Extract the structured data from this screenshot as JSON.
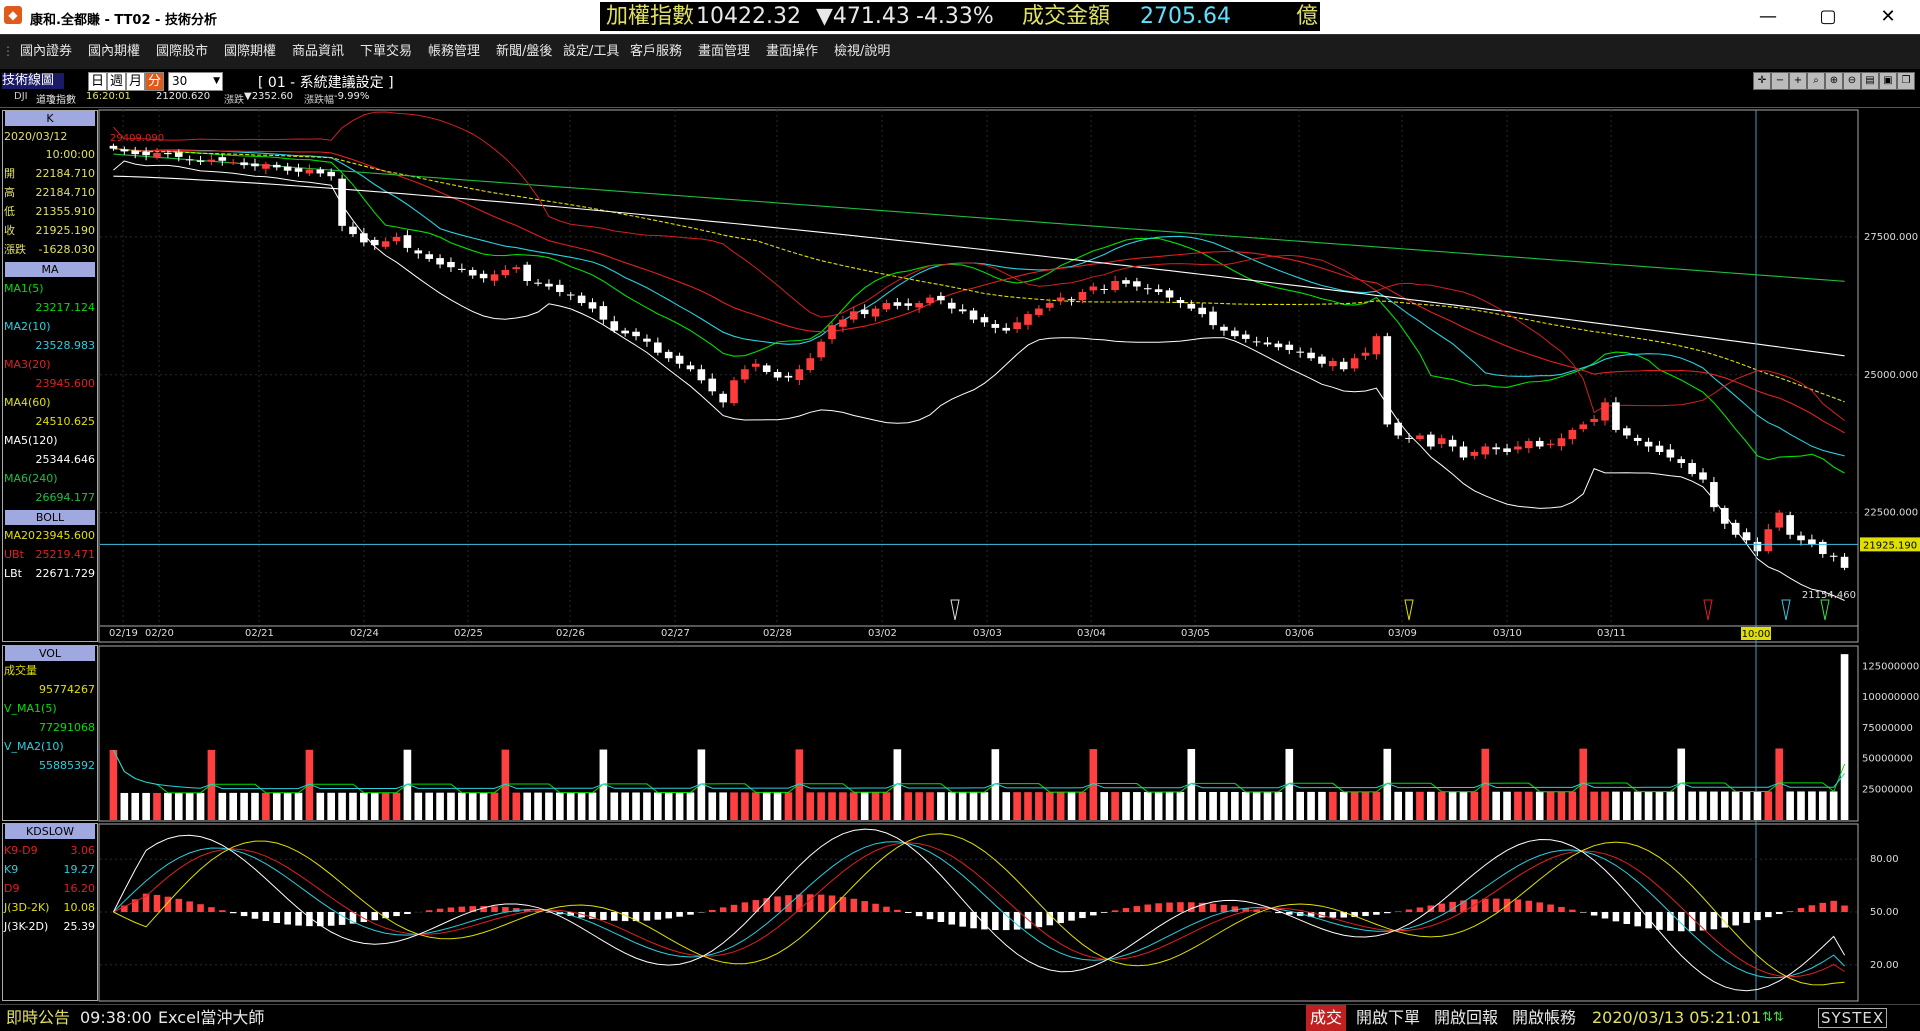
{
  "window": {
    "app_title": "康和.全都賺 - TT02 - 技術分析",
    "minimize": "—",
    "maximize": "▢",
    "close": "✕"
  },
  "ticker": {
    "label": "加權指數",
    "value": "10422.32",
    "change": "▼471.43",
    "pct": "-4.33%",
    "vol_label": "成交金額",
    "vol_value": "2705.64",
    "unit": "億"
  },
  "menu": [
    "國內證券",
    "國內期權",
    "國際股市",
    "國際期權",
    "商品資訊",
    "下單交易",
    "帳務管理",
    "新聞/盤後",
    "設定/工具",
    "客戶服務",
    "畫面管理",
    "畫面操作",
    "檢視/說明"
  ],
  "toolbar": {
    "title": "技術線圖",
    "periods": [
      "日",
      "週",
      "月",
      "分"
    ],
    "selected_period": "分",
    "period_n": "30",
    "setting": "[ 01 - 系統建議設定 ]",
    "symbol": "DJI",
    "symbol_name": "道瓊指數",
    "time": "16:20:01",
    "last": "21200.620",
    "change_label": "漲跌",
    "change": "▼2352.60",
    "pct_label": "漲跌幅",
    "pct": "-9.99%"
  },
  "k_panel": {
    "header": "K",
    "date": "2020/03/12",
    "time": "10:00:00",
    "rows": [
      {
        "label": "開",
        "value": "22184.710"
      },
      {
        "label": "高",
        "value": "22184.710"
      },
      {
        "label": "低",
        "value": "21355.910"
      },
      {
        "label": "收",
        "value": "21925.190"
      },
      {
        "label": "漲跌",
        "value": "-1628.030"
      }
    ]
  },
  "ma_panel": {
    "header": "MA",
    "rows": [
      {
        "label": "MA1(5)",
        "value": "23217.124",
        "color": "#00e000"
      },
      {
        "label": "MA2(10)",
        "value": "23528.983",
        "color": "#28d0e0"
      },
      {
        "label": "MA3(20)",
        "value": "23945.600",
        "color": "#e02020"
      },
      {
        "label": "MA4(60)",
        "value": "24510.625",
        "color": "#e0e000"
      },
      {
        "label": "MA5(120)",
        "value": "25344.646",
        "color": "#ffffff"
      },
      {
        "label": "MA6(240)",
        "value": "26694.177",
        "color": "#20c040"
      }
    ]
  },
  "boll_panel": {
    "header": "BOLL",
    "rows": [
      {
        "label": "MA20",
        "value": "23945.600",
        "color": "#e0e000"
      },
      {
        "label": "UBt",
        "value": "25219.471",
        "color": "#e02020"
      },
      {
        "label": "LBt",
        "value": "22671.729",
        "color": "#ffffff"
      }
    ]
  },
  "vol_panel": {
    "header": "VOL",
    "rows": [
      {
        "label": "成交量",
        "value": "95774267",
        "color": "#e0e000"
      },
      {
        "label": "V_MA1(5)",
        "value": "77291068",
        "color": "#00e000"
      },
      {
        "label": "V_MA2(10)",
        "value": "55885392",
        "color": "#28d0e0"
      }
    ]
  },
  "kd_panel": {
    "header": "KDSLOW",
    "rows": [
      {
        "label": "K9-D9",
        "value": "3.06",
        "color": "#e02020"
      },
      {
        "label": "K9",
        "value": "19.27",
        "color": "#28d0e0"
      },
      {
        "label": "D9",
        "value": "16.20",
        "color": "#e02020"
      },
      {
        "label": "J(3D-2K)",
        "value": "10.08",
        "color": "#e0e000"
      },
      {
        "label": "J(3K-2D)",
        "value": "25.39",
        "color": "#ffffff"
      }
    ]
  },
  "price_axis": {
    "ticks": [
      "27500.000",
      "25000.000",
      "22500.000"
    ],
    "current": "21925.190",
    "high_mark": "29409.090",
    "low_mark": "21154.460"
  },
  "date_axis": [
    "02/19",
    "02/20",
    "02/21",
    "02/24",
    "02/25",
    "02/26",
    "02/27",
    "02/28",
    "03/02",
    "03/03",
    "03/04",
    "03/05",
    "03/06",
    "03/09",
    "03/10",
    "03/11"
  ],
  "cursor_label": "10:00",
  "vol_axis": [
    "125000000",
    "100000000",
    "75000000",
    "50000000",
    "25000000"
  ],
  "kd_axis": [
    "80.00",
    "50.00",
    "20.00"
  ],
  "status": {
    "notice": "即時公告",
    "time": "09:38:00",
    "news": "Excel當沖大師",
    "deal": "成交",
    "open_order": "開啟下單",
    "open_report": "開啟回報",
    "open_account": "開啟帳務",
    "datetime": "2020/03/13 05:21:01",
    "brand": "SYSTEX"
  },
  "chart_data": {
    "type": "candlestick",
    "ylim": [
      20500,
      29800
    ],
    "colors": {
      "up": "#ff3c3c",
      "down": "#ffffff"
    },
    "close_series": [
      29100,
      29050,
      29000,
      28980,
      29020,
      29000,
      28950,
      28900,
      28860,
      28900,
      28880,
      28850,
      28800,
      28780,
      28820,
      28760,
      28700,
      28680,
      28720,
      28650,
      28600,
      27700,
      27550,
      27400,
      27350,
      27420,
      27500,
      27300,
      27200,
      27100,
      27000,
      26950,
      26900,
      26800,
      26750,
      26820,
      26900,
      26950,
      26700,
      26650,
      26600,
      26500,
      26450,
      26300,
      26200,
      26000,
      25800,
      25750,
      25700,
      25600,
      25400,
      25300,
      25200,
      25100,
      24900,
      24700,
      24500,
      24900,
      25100,
      25200,
      25050,
      24950,
      24950,
      25100,
      25300,
      25600,
      25900,
      26000,
      26150,
      26100,
      26200,
      26300,
      26250,
      26250,
      26300,
      26400,
      26350,
      26200,
      26150,
      26000,
      25950,
      25850,
      25800,
      25950,
      26100,
      26200,
      26300,
      26400,
      26350,
      26500,
      26600,
      26550,
      26700,
      26650,
      26600,
      26550,
      26500,
      26400,
      26300,
      26200,
      26100,
      25900,
      25800,
      25700,
      25650,
      25600,
      25550,
      25500,
      25450,
      25400,
      25300,
      25200,
      25250,
      25100,
      25300,
      25400,
      25700,
      24100,
      23900,
      23850,
      23900,
      23700,
      23850,
      23700,
      23500,
      23600,
      23700,
      23650,
      23600,
      23700,
      23800,
      23700,
      23750,
      23850,
      24000,
      24100,
      24200,
      24500,
      24000,
      23900,
      23800,
      23700,
      23600,
      23500,
      23400,
      23200,
      23100,
      22600,
      22300,
      22100,
      22000,
      21800,
      22200,
      22500,
      22100,
      22000,
      21925,
      21750,
      21700,
      21500
    ],
    "ma_series": [
      {
        "name": "MA1(5)",
        "color": "#00e000",
        "last": 23217.124
      },
      {
        "name": "MA2(10)",
        "color": "#28d0e0",
        "last": 23528.983
      },
      {
        "name": "MA3(20)",
        "color": "#e02020",
        "last": 23945.6
      },
      {
        "name": "MA4(60)",
        "color": "#e0e000",
        "last": 24510.625
      },
      {
        "name": "MA5(120)",
        "color": "#ffffff",
        "last": 25344.646
      },
      {
        "name": "MA6(240)",
        "color": "#20c040",
        "last": 26694.177
      }
    ],
    "volume": {
      "ylim": [
        0,
        140000000
      ],
      "last": 95774267,
      "max": 135000000
    },
    "kd": {
      "ylim": [
        0,
        100
      ],
      "K9": 19.27,
      "D9": 16.2
    }
  }
}
